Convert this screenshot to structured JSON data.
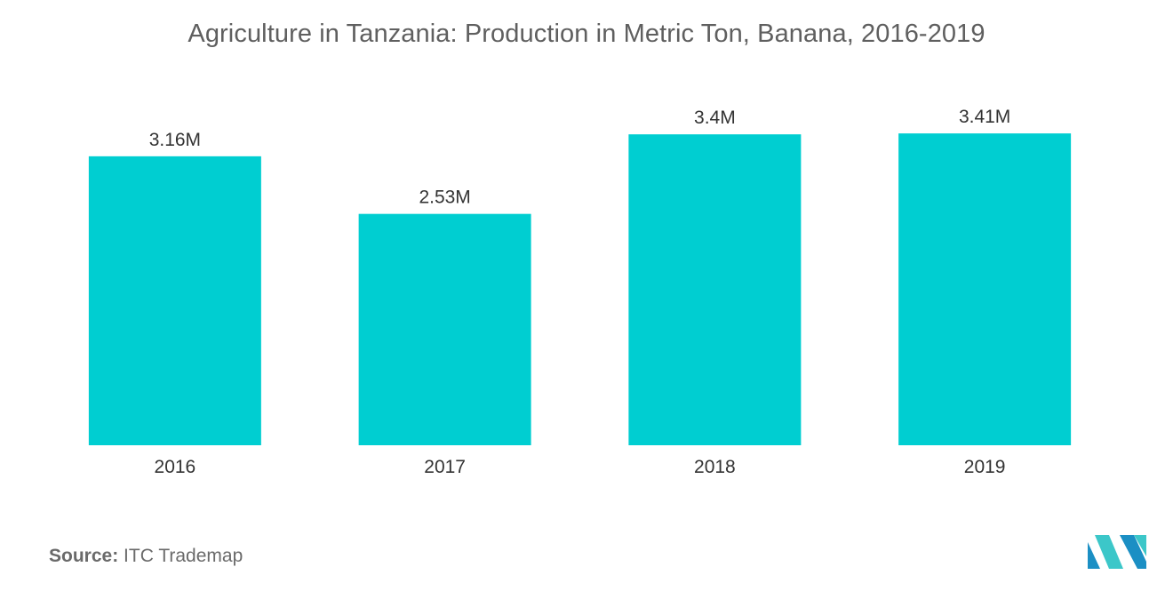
{
  "chart_data": {
    "type": "bar",
    "title": "Agriculture in Tanzania: Production in Metric Ton, Banana, 2016-2019",
    "categories": [
      "2016",
      "2017",
      "2018",
      "2019"
    ],
    "values": [
      3.16,
      2.53,
      3.4,
      3.41
    ],
    "value_unit": "M",
    "data_labels": [
      "3.16M",
      "2.53M",
      "3.4M",
      "3.41M"
    ],
    "xlabel": "",
    "ylabel": "",
    "ylim": [
      0,
      3.8
    ],
    "grid": false,
    "legend": "none",
    "bar_color": "#00CED1"
  },
  "footer": {
    "source_label": "Source:",
    "source_text": "ITC Trademap"
  },
  "logo": {
    "icon": "mordor-intelligence-logo-icon",
    "colors": [
      "#1b8fc4",
      "#3cc7c9"
    ]
  }
}
